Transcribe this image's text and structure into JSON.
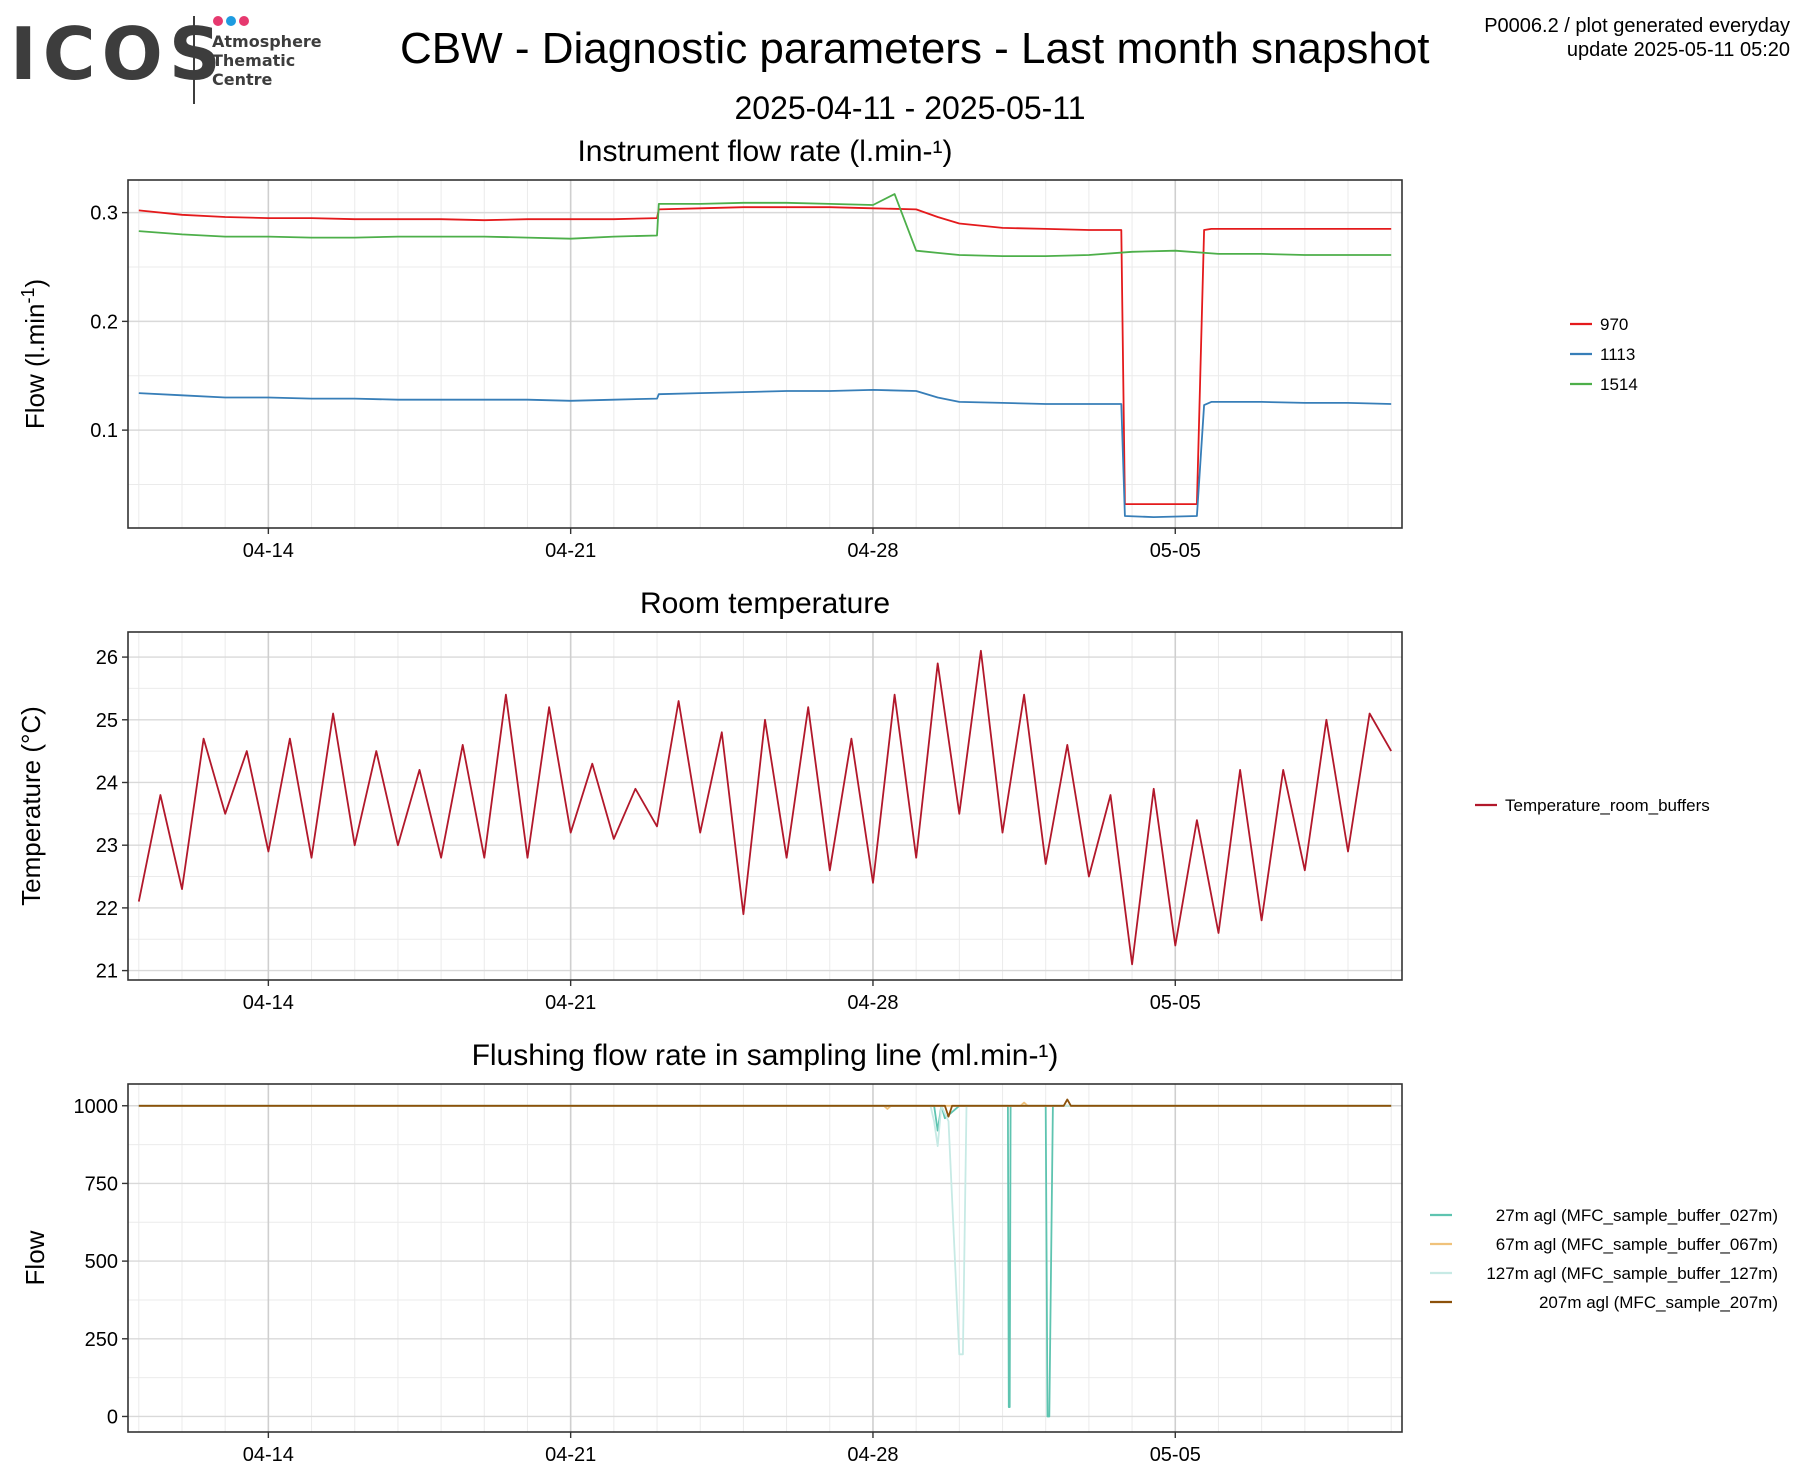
{
  "header": {
    "logo_text": "ICOS",
    "logo_subtitle": [
      "Atmosphere",
      "Thematic",
      "Centre"
    ],
    "logo_dot_colors": [
      "#e6396f",
      "#1e9be0",
      "#e6396f"
    ],
    "title": "CBW - Diagnostic parameters - Last month snapshot",
    "date_range": "2025-04-11 - 2025-05-11",
    "plot_id": "P0006.2 / plot generated everyday",
    "update": "update  2025-05-11 05:20"
  },
  "chart_data": [
    {
      "type": "line",
      "title": "Instrument flow rate (l.min-¹)",
      "xlabel": "",
      "ylabel": "Flow (l.min",
      "ylabel_sup": "-1",
      "ylabel_tail": ")",
      "x_range": [
        "2025-04-10 18:00",
        "2025-05-10 06:00"
      ],
      "x_ticks": [
        "04-14",
        "04-21",
        "04-28",
        "05-05"
      ],
      "x_tick_dates": [
        "2025-04-14",
        "2025-04-21",
        "2025-04-28",
        "2025-05-05"
      ],
      "ylim": [
        0.01,
        0.33
      ],
      "y_ticks": [
        0.1,
        0.2,
        0.3
      ],
      "grid": true,
      "legend_position": "right",
      "series": [
        {
          "name": "970",
          "color": "#e41a1c",
          "x": [
            "2025-04-11 00:00",
            "2025-04-12 00:00",
            "2025-04-13 00:00",
            "2025-04-14 00:00",
            "2025-04-15 00:00",
            "2025-04-16 00:00",
            "2025-04-17 00:00",
            "2025-04-18 00:00",
            "2025-04-19 00:00",
            "2025-04-20 00:00",
            "2025-04-21 00:00",
            "2025-04-22 00:00",
            "2025-04-23 00:00",
            "2025-04-23 01:00",
            "2025-04-24 00:00",
            "2025-04-25 00:00",
            "2025-04-26 00:00",
            "2025-04-27 00:00",
            "2025-04-28 00:00",
            "2025-04-29 00:00",
            "2025-04-29 12:00",
            "2025-04-30 00:00",
            "2025-05-01 00:00",
            "2025-05-02 00:00",
            "2025-05-03 00:00",
            "2025-05-03 18:00",
            "2025-05-03 20:00",
            "2025-05-04 12:00",
            "2025-05-05 12:00",
            "2025-05-05 16:00",
            "2025-05-05 20:00",
            "2025-05-06 12:00",
            "2025-05-07 00:00",
            "2025-05-08 00:00",
            "2025-05-09 00:00",
            "2025-05-10 00:00"
          ],
          "y": [
            0.302,
            0.298,
            0.296,
            0.295,
            0.295,
            0.294,
            0.294,
            0.294,
            0.293,
            0.294,
            0.294,
            0.294,
            0.295,
            0.303,
            0.304,
            0.305,
            0.305,
            0.305,
            0.304,
            0.303,
            0.296,
            0.29,
            0.286,
            0.285,
            0.284,
            0.284,
            0.032,
            0.032,
            0.032,
            0.284,
            0.285,
            0.285,
            0.285,
            0.285,
            0.285,
            0.285
          ]
        },
        {
          "name": "1113",
          "color": "#377eb8",
          "x": [
            "2025-04-11 00:00",
            "2025-04-12 00:00",
            "2025-04-13 00:00",
            "2025-04-14 00:00",
            "2025-04-15 00:00",
            "2025-04-16 00:00",
            "2025-04-17 00:00",
            "2025-04-18 00:00",
            "2025-04-19 00:00",
            "2025-04-20 00:00",
            "2025-04-21 00:00",
            "2025-04-22 00:00",
            "2025-04-23 00:00",
            "2025-04-23 01:00",
            "2025-04-24 00:00",
            "2025-04-25 00:00",
            "2025-04-26 00:00",
            "2025-04-27 00:00",
            "2025-04-28 00:00",
            "2025-04-29 00:00",
            "2025-04-29 12:00",
            "2025-04-30 00:00",
            "2025-05-01 00:00",
            "2025-05-02 00:00",
            "2025-05-03 00:00",
            "2025-05-03 18:00",
            "2025-05-03 20:00",
            "2025-05-04 12:00",
            "2025-05-05 12:00",
            "2025-05-05 16:00",
            "2025-05-05 20:00",
            "2025-05-06 12:00",
            "2025-05-07 00:00",
            "2025-05-08 00:00",
            "2025-05-09 00:00",
            "2025-05-10 00:00"
          ],
          "y": [
            0.134,
            0.132,
            0.13,
            0.13,
            0.129,
            0.129,
            0.128,
            0.128,
            0.128,
            0.128,
            0.127,
            0.128,
            0.129,
            0.133,
            0.134,
            0.135,
            0.136,
            0.136,
            0.137,
            0.136,
            0.13,
            0.126,
            0.125,
            0.124,
            0.124,
            0.124,
            0.021,
            0.02,
            0.021,
            0.123,
            0.126,
            0.126,
            0.126,
            0.125,
            0.125,
            0.124
          ]
        },
        {
          "name": "1514",
          "color": "#4daf4a",
          "x": [
            "2025-04-11 00:00",
            "2025-04-12 00:00",
            "2025-04-13 00:00",
            "2025-04-14 00:00",
            "2025-04-15 00:00",
            "2025-04-16 00:00",
            "2025-04-17 00:00",
            "2025-04-18 00:00",
            "2025-04-19 00:00",
            "2025-04-20 00:00",
            "2025-04-21 00:00",
            "2025-04-22 00:00",
            "2025-04-23 00:00",
            "2025-04-23 01:00",
            "2025-04-24 00:00",
            "2025-04-25 00:00",
            "2025-04-26 00:00",
            "2025-04-27 00:00",
            "2025-04-28 00:00",
            "2025-04-28 12:00",
            "2025-04-29 00:00",
            "2025-04-29 12:00",
            "2025-04-30 00:00",
            "2025-05-01 00:00",
            "2025-05-02 00:00",
            "2025-05-03 00:00",
            "2025-05-04 00:00",
            "2025-05-05 00:00",
            "2025-05-06 00:00",
            "2025-05-07 00:00",
            "2025-05-08 00:00",
            "2025-05-09 00:00",
            "2025-05-10 00:00"
          ],
          "y": [
            0.283,
            0.28,
            0.278,
            0.278,
            0.277,
            0.277,
            0.278,
            0.278,
            0.278,
            0.277,
            0.276,
            0.278,
            0.279,
            0.308,
            0.308,
            0.309,
            0.309,
            0.308,
            0.307,
            0.317,
            0.265,
            0.263,
            0.261,
            0.26,
            0.26,
            0.261,
            0.264,
            0.265,
            0.262,
            0.262,
            0.261,
            0.261,
            0.261
          ]
        }
      ]
    },
    {
      "type": "line",
      "title": "Room temperature",
      "xlabel": "",
      "ylabel": "Temperature (°C)",
      "x_range": [
        "2025-04-10 18:00",
        "2025-05-10 06:00"
      ],
      "x_ticks": [
        "04-14",
        "04-21",
        "04-28",
        "05-05"
      ],
      "x_tick_dates": [
        "2025-04-14",
        "2025-04-21",
        "2025-04-28",
        "2025-05-05"
      ],
      "ylim": [
        20.85,
        26.4
      ],
      "y_ticks": [
        21,
        22,
        23,
        24,
        25,
        26
      ],
      "grid": true,
      "legend_position": "right",
      "series": [
        {
          "name": "Temperature_room_buffers",
          "color": "#b2182b",
          "x": [
            "2025-04-11 00:00",
            "2025-04-11 12:00",
            "2025-04-12 00:00",
            "2025-04-12 12:00",
            "2025-04-13 00:00",
            "2025-04-13 12:00",
            "2025-04-14 00:00",
            "2025-04-14 12:00",
            "2025-04-15 00:00",
            "2025-04-15 12:00",
            "2025-04-16 00:00",
            "2025-04-16 12:00",
            "2025-04-17 00:00",
            "2025-04-17 12:00",
            "2025-04-18 00:00",
            "2025-04-18 12:00",
            "2025-04-19 00:00",
            "2025-04-19 12:00",
            "2025-04-20 00:00",
            "2025-04-20 12:00",
            "2025-04-21 00:00",
            "2025-04-21 12:00",
            "2025-04-22 00:00",
            "2025-04-22 12:00",
            "2025-04-23 00:00",
            "2025-04-23 12:00",
            "2025-04-24 00:00",
            "2025-04-24 12:00",
            "2025-04-25 00:00",
            "2025-04-25 12:00",
            "2025-04-26 00:00",
            "2025-04-26 12:00",
            "2025-04-27 00:00",
            "2025-04-27 12:00",
            "2025-04-28 00:00",
            "2025-04-28 12:00",
            "2025-04-29 00:00",
            "2025-04-29 12:00",
            "2025-04-30 00:00",
            "2025-04-30 12:00",
            "2025-05-01 00:00",
            "2025-05-01 12:00",
            "2025-05-02 00:00",
            "2025-05-02 12:00",
            "2025-05-03 00:00",
            "2025-05-03 12:00",
            "2025-05-04 00:00",
            "2025-05-04 12:00",
            "2025-05-05 00:00",
            "2025-05-05 12:00",
            "2025-05-06 00:00",
            "2025-05-06 12:00",
            "2025-05-07 00:00",
            "2025-05-07 12:00",
            "2025-05-08 00:00",
            "2025-05-08 12:00",
            "2025-05-09 00:00",
            "2025-05-09 12:00",
            "2025-05-10 00:00"
          ],
          "y": [
            22.1,
            23.8,
            22.3,
            24.7,
            23.5,
            24.5,
            22.9,
            24.7,
            22.8,
            25.1,
            23.0,
            24.5,
            23.0,
            24.2,
            22.8,
            24.6,
            22.8,
            25.4,
            22.8,
            25.2,
            23.2,
            24.3,
            23.1,
            23.9,
            23.3,
            25.3,
            23.2,
            24.8,
            21.9,
            25.0,
            22.8,
            25.2,
            22.6,
            24.7,
            22.4,
            25.4,
            22.8,
            25.9,
            23.5,
            26.1,
            23.2,
            25.4,
            22.7,
            24.6,
            22.5,
            23.8,
            21.1,
            23.9,
            21.4,
            23.4,
            21.6,
            24.2,
            21.8,
            24.2,
            22.6,
            25.0,
            22.9,
            25.1,
            24.5
          ]
        }
      ]
    },
    {
      "type": "line",
      "title": "Flushing flow rate in sampling line (ml.min-¹)",
      "xlabel": "",
      "ylabel": "Flow",
      "x_range": [
        "2025-04-10 18:00",
        "2025-05-10 06:00"
      ],
      "x_ticks": [
        "04-14",
        "04-21",
        "04-28",
        "05-05"
      ],
      "x_tick_dates": [
        "2025-04-14",
        "2025-04-21",
        "2025-04-28",
        "2025-05-05"
      ],
      "ylim": [
        -50,
        1070
      ],
      "y_ticks": [
        0,
        250,
        500,
        750,
        1000
      ],
      "grid": true,
      "legend_position": "right",
      "series": [
        {
          "name": "27m agl (MFC_sample_buffer_027m)",
          "color": "#5ec4b0",
          "x": [
            "2025-04-11 00:00",
            "2025-04-29 10:00",
            "2025-04-29 12:00",
            "2025-04-29 14:00",
            "2025-04-29 16:00",
            "2025-04-30 00:00",
            "2025-05-01 03:00",
            "2025-05-01 03:30",
            "2025-05-01 04:00",
            "2025-05-01 04:30",
            "2025-05-01 06:00",
            "2025-05-02 00:00",
            "2025-05-02 01:00",
            "2025-05-02 02:00",
            "2025-05-02 04:00",
            "2025-05-10 00:00"
          ],
          "y": [
            1000,
            1000,
            920,
            1000,
            960,
            1000,
            1000,
            30,
            30,
            1000,
            1000,
            1000,
            0,
            0,
            1000,
            1000
          ]
        },
        {
          "name": "67m agl (MFC_sample_buffer_067m)",
          "color": "#f0c27b",
          "x": [
            "2025-04-11 00:00",
            "2025-04-28 06:00",
            "2025-04-28 08:00",
            "2025-04-28 10:00",
            "2025-05-01 10:00",
            "2025-05-01 12:00",
            "2025-05-01 14:00",
            "2025-05-10 00:00"
          ],
          "y": [
            1000,
            1000,
            990,
            1000,
            1000,
            1010,
            1000,
            1000
          ]
        },
        {
          "name": "127m agl (MFC_sample_buffer_127m)",
          "color": "#c7eae5",
          "x": [
            "2025-04-11 00:00",
            "2025-04-29 08:00",
            "2025-04-29 10:00",
            "2025-04-29 12:00",
            "2025-04-29 14:00",
            "2025-04-29 18:00",
            "2025-04-30 00:00",
            "2025-04-30 02:00",
            "2025-04-30 04:00",
            "2025-04-30 06:00",
            "2025-05-10 00:00"
          ],
          "y": [
            1000,
            1000,
            950,
            870,
            1000,
            950,
            200,
            200,
            1000,
            1000,
            1000
          ]
        },
        {
          "name": "207m agl (MFC_sample_207m)",
          "color": "#8c510a",
          "x": [
            "2025-04-11 00:00",
            "2025-04-29 16:00",
            "2025-04-29 18:00",
            "2025-04-29 20:00",
            "2025-05-02 10:00",
            "2025-05-02 12:00",
            "2025-05-02 14:00",
            "2025-05-10 00:00"
          ],
          "y": [
            1000,
            1000,
            965,
            1000,
            1000,
            1020,
            1000,
            1000
          ]
        }
      ]
    }
  ]
}
